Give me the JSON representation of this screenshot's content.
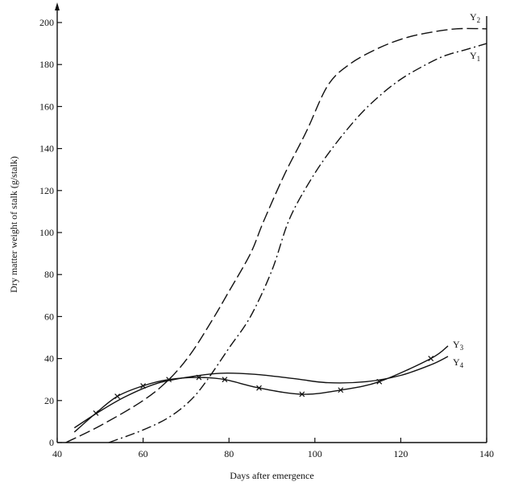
{
  "chart_data": {
    "type": "line",
    "xlabel": "Days after emergence",
    "ylabel": "Dry matter weight of stalk (g/stalk)",
    "xlim": [
      40,
      140
    ],
    "ylim": [
      0,
      200
    ],
    "x_ticks": [
      40,
      60,
      80,
      100,
      120,
      140
    ],
    "y_ticks": [
      0,
      20,
      40,
      60,
      80,
      100,
      120,
      140,
      160,
      180,
      200
    ],
    "grid": false,
    "series": [
      {
        "name": "Y₁",
        "label_main": "Y",
        "label_sub": "1",
        "dash": "dashdot",
        "markers": false,
        "points": [
          [
            52,
            0
          ],
          [
            60,
            6
          ],
          [
            66,
            12
          ],
          [
            71,
            20
          ],
          [
            75,
            30
          ],
          [
            80,
            45
          ],
          [
            85,
            60
          ],
          [
            90,
            82
          ],
          [
            94,
            106
          ],
          [
            99,
            125
          ],
          [
            104,
            140
          ],
          [
            110,
            155
          ],
          [
            115,
            165
          ],
          [
            120,
            173
          ],
          [
            125,
            179
          ],
          [
            130,
            184
          ],
          [
            135,
            187
          ],
          [
            140,
            190
          ]
        ]
      },
      {
        "name": "Y₂",
        "label_main": "Y",
        "label_sub": "2",
        "dash": "longdash",
        "markers": false,
        "points": [
          [
            42,
            0
          ],
          [
            50,
            8
          ],
          [
            60,
            20
          ],
          [
            66,
            30
          ],
          [
            71,
            42
          ],
          [
            76,
            58
          ],
          [
            80,
            72
          ],
          [
            85,
            90
          ],
          [
            88,
            105
          ],
          [
            93,
            128
          ],
          [
            98,
            148
          ],
          [
            103,
            170
          ],
          [
            108,
            180
          ],
          [
            114,
            187
          ],
          [
            120,
            192
          ],
          [
            126,
            195
          ],
          [
            133,
            197
          ],
          [
            140,
            197
          ]
        ]
      },
      {
        "name": "Y₃",
        "label_main": "Y",
        "label_sub": "3",
        "dash": "solid",
        "markers": true,
        "points": [
          [
            44,
            5
          ],
          [
            49,
            14
          ],
          [
            54,
            22
          ],
          [
            60,
            27
          ],
          [
            66,
            30
          ],
          [
            73,
            31
          ],
          [
            79,
            30
          ],
          [
            87,
            26
          ],
          [
            97,
            23
          ],
          [
            106,
            25
          ],
          [
            115,
            29
          ],
          [
            127,
            40
          ],
          [
            131,
            46
          ]
        ]
      },
      {
        "name": "Y₄",
        "label_main": "Y",
        "label_sub": "4",
        "dash": "solid",
        "markers": false,
        "points": [
          [
            44,
            7
          ],
          [
            50,
            15
          ],
          [
            56,
            22
          ],
          [
            63,
            28
          ],
          [
            70,
            31
          ],
          [
            78,
            33
          ],
          [
            86,
            32.5
          ],
          [
            95,
            30.5
          ],
          [
            103,
            28.5
          ],
          [
            112,
            29
          ],
          [
            120,
            32
          ],
          [
            127,
            37
          ],
          [
            131,
            41
          ]
        ]
      }
    ]
  }
}
